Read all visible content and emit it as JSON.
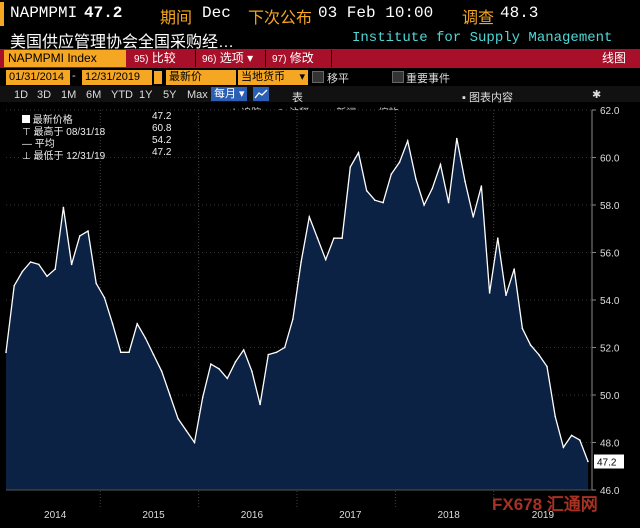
{
  "header": {
    "ticker": "NAPMPMI",
    "last_value": "47.2",
    "period_label": "期间",
    "period_value": "Dec",
    "next_release_label": "下次公布",
    "next_release_value": "03 Feb 10:00",
    "survey_label": "调查",
    "survey_value": "48.3"
  },
  "subtitle": {
    "cn_title": "美国供应管理协会全国采购经…",
    "en_source": "Institute for Supply Management"
  },
  "toolbar": {
    "index_name": "NAPMPMI Index",
    "compare": {
      "num": "95)",
      "label": "比较"
    },
    "options": {
      "num": "96)",
      "label": "选项"
    },
    "edit": {
      "num": "97)",
      "label": "修改"
    },
    "right_label": "线图"
  },
  "controls": {
    "start_date": "01/31/2014",
    "end_date": "12/31/2019",
    "price_field": "最新价",
    "currency": "当地货币",
    "moving_avg_label": "移平",
    "events_label": "重要事件"
  },
  "ranges": [
    "1D",
    "3D",
    "1M",
    "6M",
    "YTD",
    "1Y",
    "5Y",
    "Max"
  ],
  "frequency": "每月",
  "table_label": "表",
  "chart_content_label": "图表内容",
  "chart_tools": {
    "track": "追踪",
    "annotate": "注释",
    "news": "新闻",
    "zoom": "缩放"
  },
  "legend": {
    "last_label": "最新价格",
    "last_value": "47.2",
    "high_label": "最高于 08/31/18",
    "high_value": "60.8",
    "avg_label": "平均",
    "avg_value": "54.2",
    "low_label": "最低于 12/31/19",
    "low_value": "47.2"
  },
  "watermark": "FX678 汇通网",
  "colors": {
    "accent": "#f5a623",
    "toolbar_red": "#a8102a",
    "area_fill": "#0b2244",
    "line": "#ffffff"
  },
  "chart_data": {
    "type": "area",
    "x_start": "2014-01",
    "x_end": "2019-12",
    "ylim": [
      46.0,
      62.0
    ],
    "yticks": [
      "62.0",
      "60.0",
      "58.0",
      "56.0",
      "54.0",
      "52.0",
      "50.0",
      "48.0",
      "46.0"
    ],
    "xticks": [
      "2014",
      "2015",
      "2016",
      "2017",
      "2018",
      "2019"
    ],
    "last_label": "47.2",
    "values": [
      51.8,
      54.6,
      55.2,
      55.6,
      55.5,
      55.0,
      55.3,
      57.9,
      55.5,
      56.7,
      56.9,
      54.7,
      54.1,
      53.0,
      51.8,
      51.8,
      53.0,
      52.4,
      51.7,
      51.0,
      50.0,
      49.0,
      48.5,
      48.0,
      49.9,
      51.3,
      51.1,
      50.7,
      51.4,
      51.9,
      51.0,
      49.6,
      51.7,
      51.8,
      52.0,
      53.2,
      55.6,
      57.5,
      56.6,
      55.7,
      56.6,
      56.6,
      59.6,
      60.2,
      58.6,
      58.2,
      58.1,
      59.3,
      59.8,
      60.7,
      59.1,
      58.0,
      58.7,
      59.7,
      58.1,
      60.8,
      59.0,
      57.5,
      58.8,
      54.3,
      56.6,
      54.2,
      55.3,
      52.8,
      52.1,
      51.7,
      51.2,
      49.1,
      47.8,
      48.3,
      48.1,
      47.2
    ]
  }
}
